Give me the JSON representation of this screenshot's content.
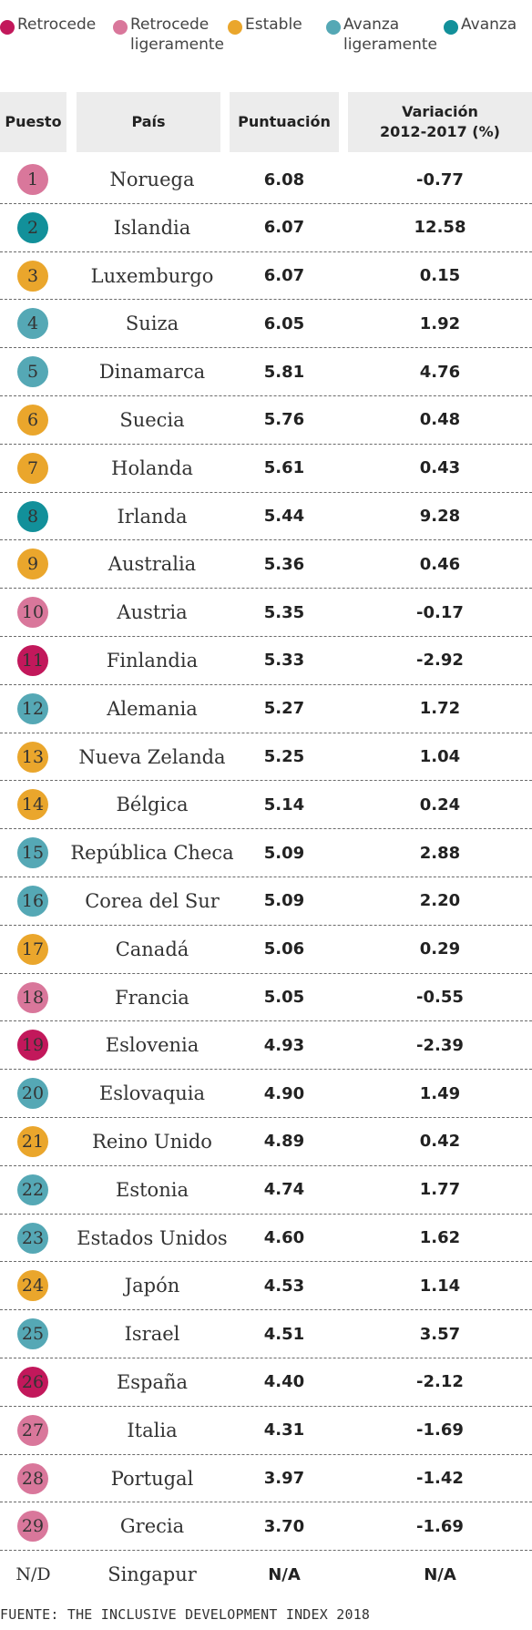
{
  "legend": [
    {
      "label": "Retrocede",
      "color": "#c2185b"
    },
    {
      "label": "Retrocede\nligeramente",
      "color": "#d9779b"
    },
    {
      "label": "Estable",
      "color": "#eaa62c"
    },
    {
      "label": "Avanza\nligeramente",
      "color": "#55a8b5"
    },
    {
      "label": "Avanza",
      "color": "#12909a"
    }
  ],
  "header": {
    "puesto": "Puesto",
    "pais": "País",
    "puntuacion": "Puntuación",
    "variacion": "Variación\n2012-2017 (%)"
  },
  "chart_data": {
    "type": "table",
    "columns": [
      "Puesto",
      "País",
      "Puntuación",
      "Variación 2012-2017 (%)"
    ],
    "rows": [
      {
        "rank": "1",
        "country": "Noruega",
        "score": "6.08",
        "variation": "-0.77",
        "category": "Retrocede ligeramente"
      },
      {
        "rank": "2",
        "country": "Islandia",
        "score": "6.07",
        "variation": "12.58",
        "category": "Avanza"
      },
      {
        "rank": "3",
        "country": "Luxemburgo",
        "score": "6.07",
        "variation": "0.15",
        "category": "Estable"
      },
      {
        "rank": "4",
        "country": "Suiza",
        "score": "6.05",
        "variation": "1.92",
        "category": "Avanza ligeramente"
      },
      {
        "rank": "5",
        "country": "Dinamarca",
        "score": "5.81",
        "variation": "4.76",
        "category": "Avanza ligeramente"
      },
      {
        "rank": "6",
        "country": "Suecia",
        "score": "5.76",
        "variation": "0.48",
        "category": "Estable"
      },
      {
        "rank": "7",
        "country": "Holanda",
        "score": "5.61",
        "variation": "0.43",
        "category": "Estable"
      },
      {
        "rank": "8",
        "country": "Irlanda",
        "score": "5.44",
        "variation": "9.28",
        "category": "Avanza"
      },
      {
        "rank": "9",
        "country": "Australia",
        "score": "5.36",
        "variation": "0.46",
        "category": "Estable"
      },
      {
        "rank": "10",
        "country": "Austria",
        "score": "5.35",
        "variation": "-0.17",
        "category": "Retrocede ligeramente"
      },
      {
        "rank": "11",
        "country": "Finlandia",
        "score": "5.33",
        "variation": "-2.92",
        "category": "Retrocede"
      },
      {
        "rank": "12",
        "country": "Alemania",
        "score": "5.27",
        "variation": "1.72",
        "category": "Avanza ligeramente"
      },
      {
        "rank": "13",
        "country": "Nueva Zelanda",
        "score": "5.25",
        "variation": "1.04",
        "category": "Estable"
      },
      {
        "rank": "14",
        "country": "Bélgica",
        "score": "5.14",
        "variation": "0.24",
        "category": "Estable"
      },
      {
        "rank": "15",
        "country": "República Checa",
        "score": "5.09",
        "variation": "2.88",
        "category": "Avanza ligeramente"
      },
      {
        "rank": "16",
        "country": "Corea del Sur",
        "score": "5.09",
        "variation": "2.20",
        "category": "Avanza ligeramente"
      },
      {
        "rank": "17",
        "country": "Canadá",
        "score": "5.06",
        "variation": "0.29",
        "category": "Estable"
      },
      {
        "rank": "18",
        "country": "Francia",
        "score": "5.05",
        "variation": "-0.55",
        "category": "Retrocede ligeramente"
      },
      {
        "rank": "19",
        "country": "Eslovenia",
        "score": "4.93",
        "variation": "-2.39",
        "category": "Retrocede"
      },
      {
        "rank": "20",
        "country": "Eslovaquia",
        "score": "4.90",
        "variation": "1.49",
        "category": "Avanza ligeramente"
      },
      {
        "rank": "21",
        "country": "Reino Unido",
        "score": "4.89",
        "variation": "0.42",
        "category": "Estable"
      },
      {
        "rank": "22",
        "country": "Estonia",
        "score": "4.74",
        "variation": "1.77",
        "category": "Avanza ligeramente"
      },
      {
        "rank": "23",
        "country": "Estados Unidos",
        "score": "4.60",
        "variation": "1.62",
        "category": "Avanza ligeramente"
      },
      {
        "rank": "24",
        "country": "Japón",
        "score": "4.53",
        "variation": "1.14",
        "category": "Estable"
      },
      {
        "rank": "25",
        "country": "Israel",
        "score": "4.51",
        "variation": "3.57",
        "category": "Avanza ligeramente"
      },
      {
        "rank": "26",
        "country": "España",
        "score": "4.40",
        "variation": "-2.12",
        "category": "Retrocede"
      },
      {
        "rank": "27",
        "country": "Italia",
        "score": "4.31",
        "variation": "-1.69",
        "category": "Retrocede ligeramente"
      },
      {
        "rank": "28",
        "country": "Portugal",
        "score": "3.97",
        "variation": "-1.42",
        "category": "Retrocede ligeramente"
      },
      {
        "rank": "29",
        "country": "Grecia",
        "score": "3.70",
        "variation": "-1.69",
        "category": "Retrocede ligeramente"
      },
      {
        "rank": "N/D",
        "country": "Singapur",
        "score": "N/A",
        "variation": "N/A",
        "category": null
      }
    ]
  },
  "source": "FUENTE: THE INCLUSIVE DEVELOPMENT INDEX 2018"
}
